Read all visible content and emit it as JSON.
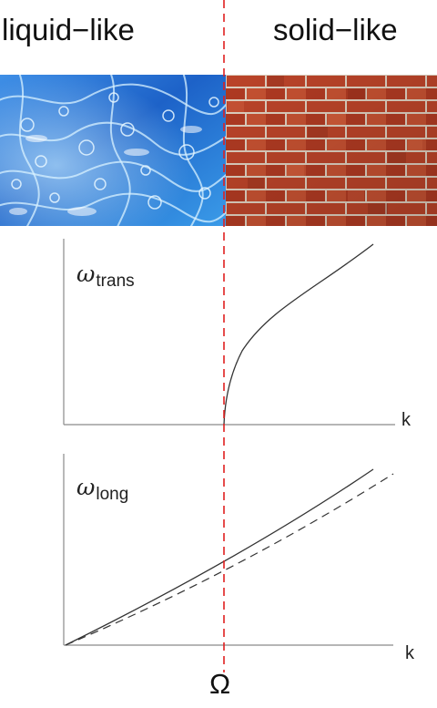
{
  "labels": {
    "left_region": "liquid−like",
    "right_region": "solid−like",
    "critical_frequency": "Ω"
  },
  "panels": [
    {
      "symbol": "ω",
      "subscript": "trans",
      "axis_label": "k"
    },
    {
      "symbol": "ω",
      "subscript": "long",
      "axis_label": "k"
    }
  ],
  "images": {
    "left": "water-surface-photo",
    "right": "brick-wall-photo"
  },
  "colors": {
    "divider": "#e02020",
    "curve": "#333333",
    "water": "#1e6fd0",
    "brick": "#c0462a",
    "mortar": "#e9d9c8"
  }
}
